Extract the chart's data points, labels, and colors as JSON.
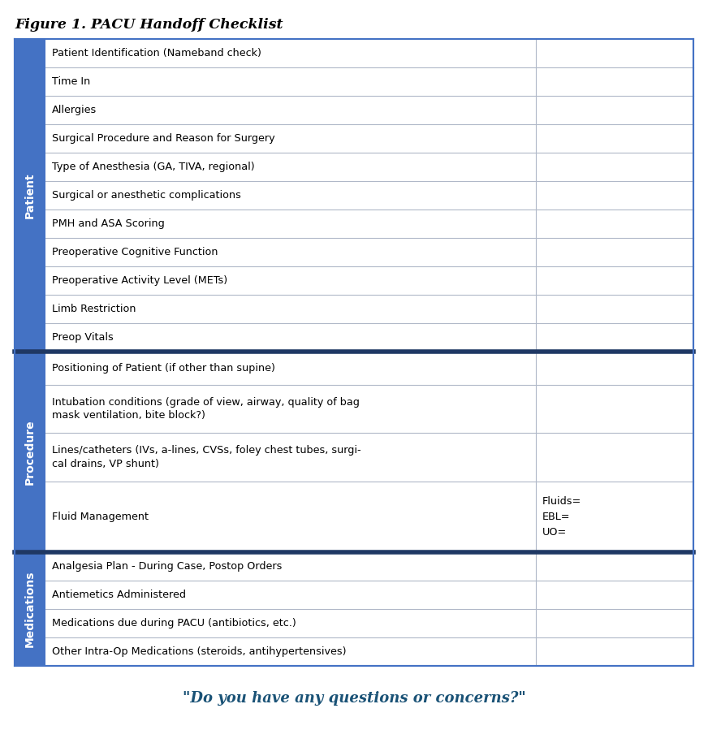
{
  "title": "Figure 1. PACU Handoff Checklist",
  "footer": "\"Do you have any questions or concerns?\"",
  "sections": [
    {
      "label": "Patient",
      "color": "#4472c4",
      "rows": [
        {
          "text": "Patient Identification (Nameband check)",
          "note": ""
        },
        {
          "text": "Time In",
          "note": ""
        },
        {
          "text": "Allergies",
          "note": ""
        },
        {
          "text": "Surgical Procedure and Reason for Surgery",
          "note": ""
        },
        {
          "text": "Type of Anesthesia (GA, TIVA, regional)",
          "note": ""
        },
        {
          "text": "Surgical or anesthetic complications",
          "note": ""
        },
        {
          "text": "PMH and ASA Scoring",
          "note": ""
        },
        {
          "text": "Preoperative Cognitive Function",
          "note": ""
        },
        {
          "text": "Preoperative Activity Level (METs)",
          "note": ""
        },
        {
          "text": "Limb Restriction",
          "note": ""
        },
        {
          "text": "Preop Vitals",
          "note": ""
        }
      ]
    },
    {
      "label": "Procedure",
      "color": "#4472c4",
      "rows": [
        {
          "text": "Positioning of Patient (if other than supine)",
          "note": "",
          "lines": 1
        },
        {
          "text": "Intubation conditions (grade of view, airway, quality of bag\nmask ventilation, bite block?)",
          "note": "",
          "lines": 2
        },
        {
          "text": "Lines/catheters (IVs, a-lines, CVSs, foley chest tubes, surgi-\ncal drains, VP shunt)",
          "note": "",
          "lines": 2
        },
        {
          "text": "Fluid Management",
          "note": "Fluids=\nEBL=\nUO=",
          "lines": 3
        }
      ]
    },
    {
      "label": "Medications",
      "color": "#4472c4",
      "rows": [
        {
          "text": "Analgesia Plan - During Case, Postop Orders",
          "note": ""
        },
        {
          "text": "Antiemetics Administered",
          "note": ""
        },
        {
          "text": "Medications due during PACU (antibiotics, etc.)",
          "note": ""
        },
        {
          "text": "Other Intra-Op Medications (steroids, antihypertensives)",
          "note": ""
        }
      ]
    }
  ],
  "outer_border_color": "#4472c4",
  "divider_color": "#1f3864",
  "cell_line_color": "#b0b8c8",
  "bg_color": "#ffffff",
  "text_color": "#000000",
  "footer_color": "#1a5276",
  "label_text_color": "#ffffff",
  "sidebar_color": "#4472c4"
}
